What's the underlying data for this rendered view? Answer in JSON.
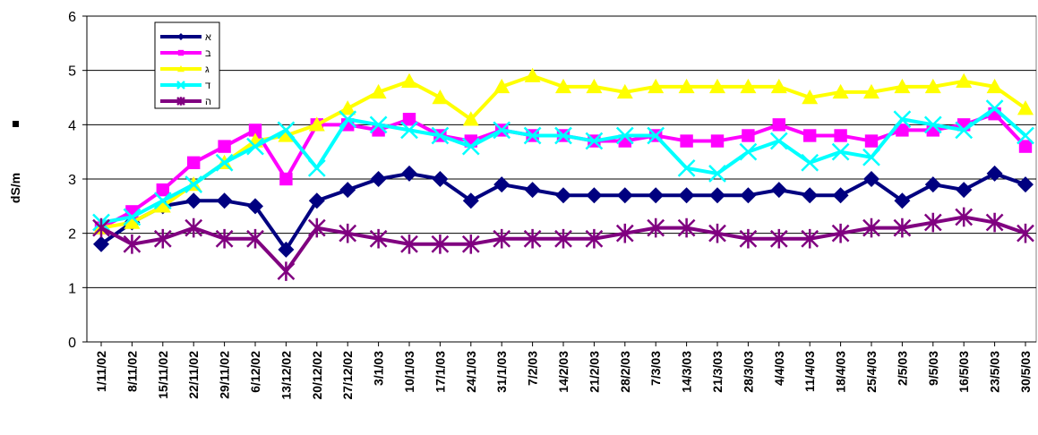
{
  "chart_data": {
    "type": "line",
    "title": "",
    "xlabel": "",
    "ylabel": "dS/m",
    "ylim": [
      0,
      6
    ],
    "yticks": [
      "0",
      "1",
      "2",
      "3",
      "4",
      "5",
      "6"
    ],
    "grid": "horizontal",
    "legend_position": "top-left",
    "categories": [
      "1/11/02",
      "8/11/02",
      "15/11/02",
      "22/11/02",
      "29/11/02",
      "6/12/02",
      "13/12/02",
      "20/12/02",
      "27/12/02",
      "3/1/03",
      "10/1/03",
      "17/1/03",
      "24/1/03",
      "31/1/03",
      "7/2/03",
      "14/2/03",
      "21/2/03",
      "28/2/03",
      "7/3/03",
      "14/3/03",
      "21/3/03",
      "28/3/03",
      "4/4/03",
      "11/4/03",
      "18/4/03",
      "25/4/03",
      "2/5/03",
      "9/5/03",
      "16/5/03",
      "23/5/03",
      "30/5/03"
    ],
    "series": [
      {
        "name": "א",
        "color": "#000080",
        "marker": "diamond",
        "values": [
          1.8,
          2.2,
          2.5,
          2.6,
          2.6,
          2.5,
          1.7,
          2.6,
          2.8,
          3.0,
          3.1,
          3.0,
          2.6,
          2.9,
          2.8,
          2.7,
          2.7,
          2.7,
          2.7,
          2.7,
          2.7,
          2.7,
          2.8,
          2.7,
          2.7,
          3.0,
          2.6,
          2.9,
          2.8,
          3.1,
          2.9
        ]
      },
      {
        "name": "ב",
        "color": "#FF00FF",
        "marker": "square",
        "values": [
          2.1,
          2.4,
          2.8,
          3.3,
          3.6,
          3.9,
          3.0,
          4.0,
          4.0,
          3.9,
          4.1,
          3.8,
          3.7,
          3.9,
          3.8,
          3.8,
          3.7,
          3.7,
          3.8,
          3.7,
          3.7,
          3.8,
          4.0,
          3.8,
          3.8,
          3.7,
          3.9,
          3.9,
          4.0,
          4.2,
          3.6
        ]
      },
      {
        "name": "ג",
        "color": "#FFFF00",
        "marker": "triangle",
        "values": [
          2.1,
          2.2,
          2.5,
          2.9,
          3.3,
          3.7,
          3.8,
          4.0,
          4.3,
          4.6,
          4.8,
          4.5,
          4.1,
          4.7,
          4.9,
          4.7,
          4.7,
          4.6,
          4.7,
          4.7,
          4.7,
          4.7,
          4.7,
          4.5,
          4.6,
          4.6,
          4.7,
          4.7,
          4.8,
          4.7,
          4.3
        ]
      },
      {
        "name": "ד",
        "color": "#00FFFF",
        "marker": "x",
        "values": [
          2.2,
          2.3,
          2.6,
          2.9,
          3.3,
          3.6,
          3.9,
          3.2,
          4.1,
          4.0,
          3.9,
          3.8,
          3.6,
          3.9,
          3.8,
          3.8,
          3.7,
          3.8,
          3.8,
          3.2,
          3.1,
          3.5,
          3.7,
          3.3,
          3.5,
          3.4,
          4.1,
          4.0,
          3.9,
          4.3,
          3.8
        ]
      },
      {
        "name": "ה",
        "color": "#800080",
        "marker": "star",
        "values": [
          2.1,
          1.8,
          1.9,
          2.1,
          1.9,
          1.9,
          1.3,
          2.1,
          2.0,
          1.9,
          1.8,
          1.8,
          1.8,
          1.9,
          1.9,
          1.9,
          1.9,
          2.0,
          2.1,
          2.1,
          2.0,
          1.9,
          1.9,
          1.9,
          2.0,
          2.1,
          2.1,
          2.2,
          2.3,
          2.2,
          2.0
        ]
      }
    ]
  }
}
